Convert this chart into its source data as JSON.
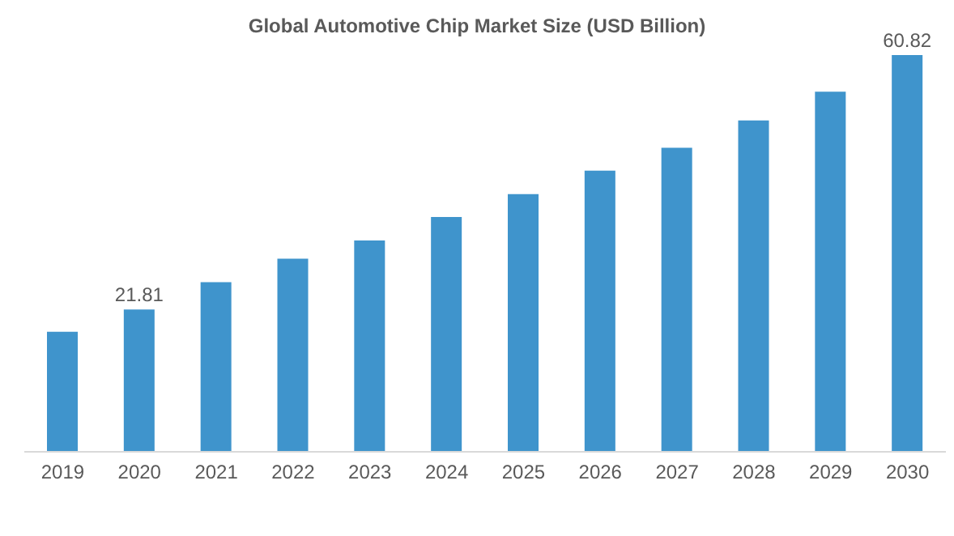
{
  "chart_data": {
    "type": "bar",
    "title": "Global Automotive Chip Market Size (USD Billion)",
    "categories": [
      "2019",
      "2020",
      "2021",
      "2022",
      "2023",
      "2024",
      "2025",
      "2026",
      "2027",
      "2028",
      "2029",
      "2030"
    ],
    "values": [
      18.4,
      21.81,
      26.0,
      29.6,
      32.4,
      36.0,
      39.5,
      43.1,
      46.6,
      50.8,
      55.2,
      60.82
    ],
    "value_labels": [
      null,
      "21.81",
      null,
      null,
      null,
      null,
      null,
      null,
      null,
      null,
      null,
      "60.82"
    ],
    "color": "#3f94cc",
    "tick_labels": "x"
  }
}
